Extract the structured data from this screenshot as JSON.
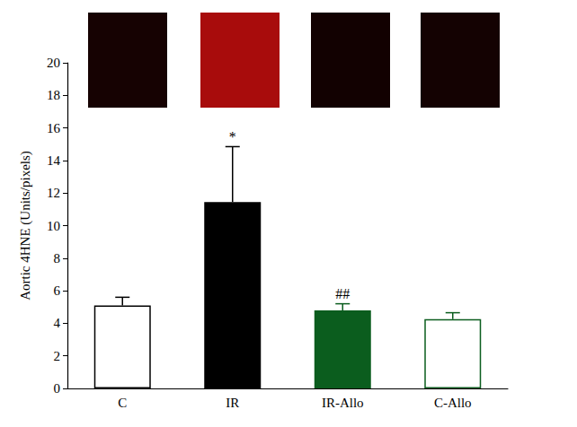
{
  "chart_data": {
    "type": "bar",
    "y_label": "Aortic 4HNE (Units/pixels)",
    "categories": [
      "C",
      "IR",
      "IR-Allo",
      "C-Allo"
    ],
    "values": [
      5.1,
      11.45,
      4.8,
      4.25
    ],
    "errors": [
      0.5,
      3.4,
      0.4,
      0.4
    ],
    "annotations": [
      null,
      "*",
      "##",
      null
    ],
    "colors": [
      "#ffffff",
      "#000000",
      "#0b5d1e",
      "#ffffff"
    ],
    "ylim": [
      0,
      20
    ],
    "yticks": [
      0,
      2,
      4,
      6,
      8,
      10,
      12,
      14,
      16,
      18,
      20
    ],
    "grid": false
  }
}
